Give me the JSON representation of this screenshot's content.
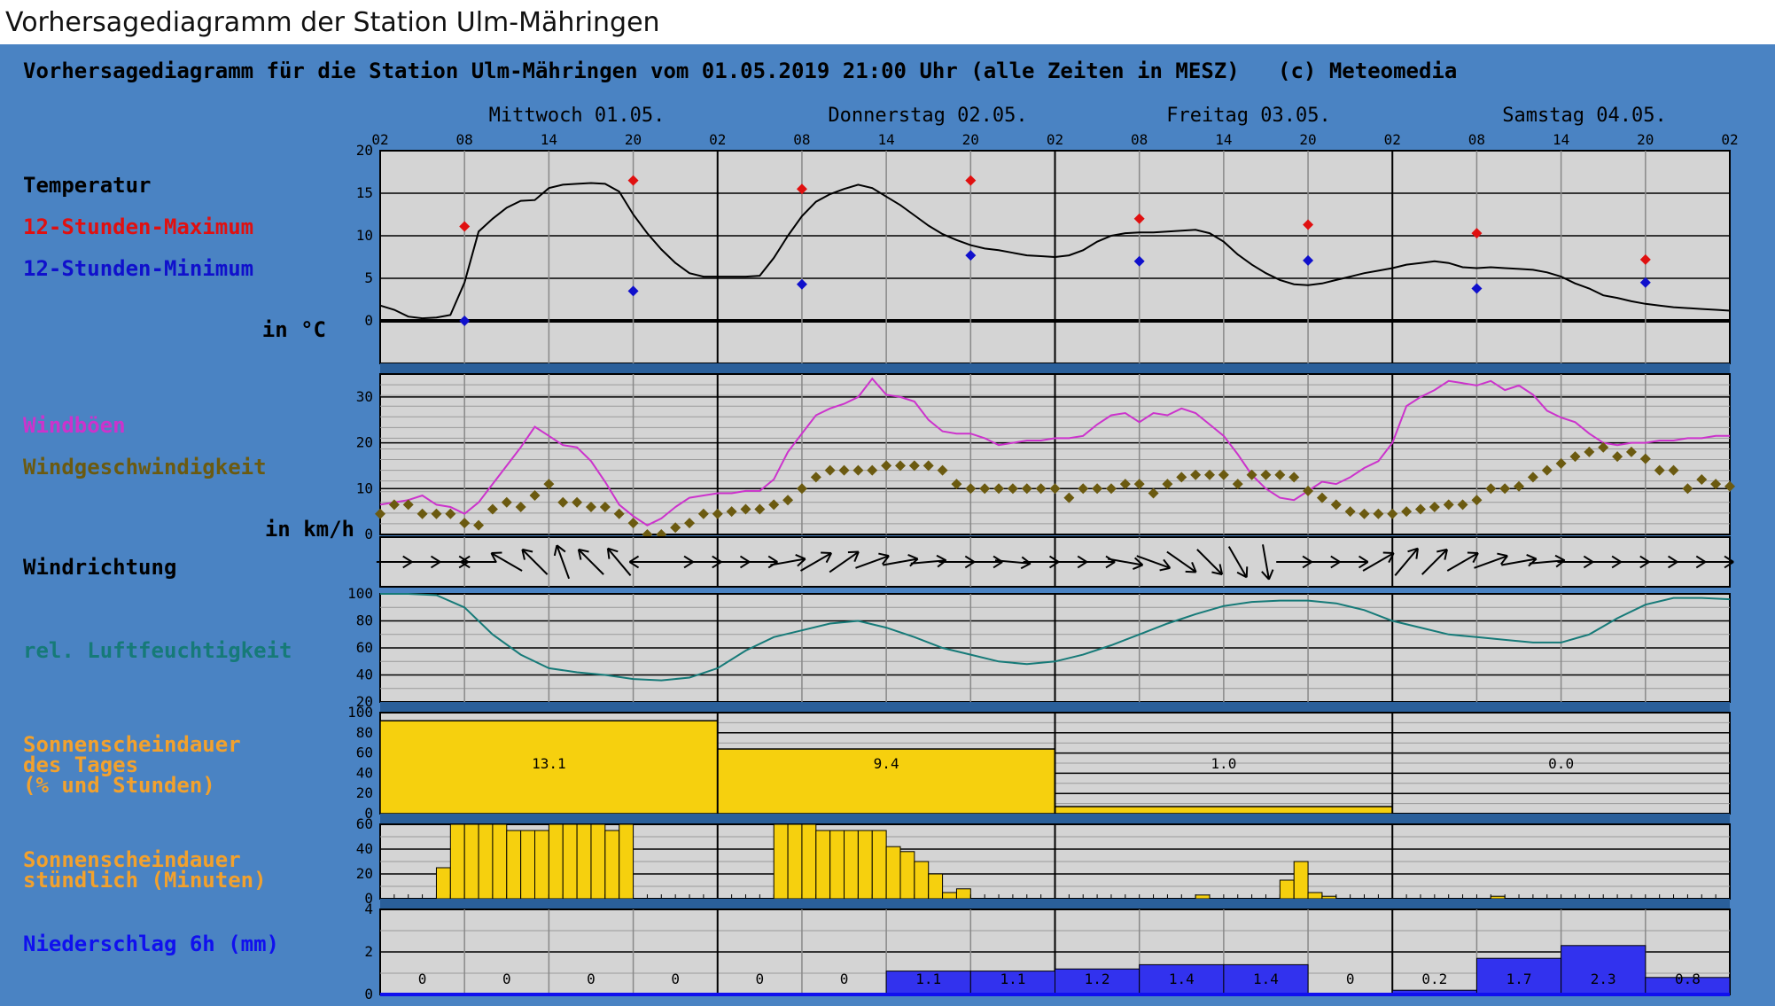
{
  "page": {
    "title": "Vorhersagediagramm der Station Ulm-Mähringen"
  },
  "chart": {
    "header": "Vorhersagediagramm für die Station Ulm-Mähringen vom 01.05.2019 21:00 Uhr (alle Zeiten in MESZ)   (c) Meteomedia",
    "days": [
      "Mittwoch 01.05.",
      "Donnerstag 02.05.",
      "Freitag 03.05.",
      "Samstag 04.05."
    ],
    "hour_labels": [
      "02",
      "08",
      "14",
      "20",
      "02",
      "08",
      "14",
      "20",
      "02",
      "08",
      "14",
      "20",
      "02",
      "08",
      "14",
      "20",
      "02"
    ],
    "colors": {
      "background": "#4a83c3",
      "plot": "#d4d4d4",
      "temperature": "#000000",
      "maximum": "#e01010",
      "minimum": "#1010cc",
      "gust": "#cc33cc",
      "wind_speed": "#6b5a10",
      "humidity": "#167a78",
      "sunshine": "#f6d00e",
      "sunshine_label": "#f2a12d",
      "precip": "#3232ee"
    },
    "labels": {
      "temperature": "Temperatur",
      "max": "12-Stunden-Maximum",
      "min": "12-Stunden-Minimum",
      "temp_unit": "in °C",
      "gust": "Windböen",
      "wind_speed": "Windgeschwindigkeit",
      "wind_unit": "in km/h",
      "wind_direction": "Windrichtung",
      "humidity": "rel. Luftfeuchtigkeit",
      "sun_daily_1": "Sonnenscheindauer",
      "sun_daily_2": "des Tages",
      "sun_daily_3": "(% und Stunden)",
      "sun_hourly_1": "Sonnenscheindauer",
      "sun_hourly_2": "stündlich (Minuten)",
      "precip": "Niederschlag 6h (mm)"
    }
  },
  "chart_data": {
    "type": "line",
    "x_unit": "hours since 01.05. 02:00 MESZ",
    "xlim": [
      0,
      96
    ],
    "temperature": {
      "ylim": [
        -5,
        20
      ],
      "yticks": [
        0,
        5,
        10,
        15,
        20
      ],
      "x": [
        0,
        1,
        2,
        3,
        4,
        5,
        6,
        7,
        8,
        9,
        10,
        11,
        12,
        13,
        14,
        15,
        16,
        17,
        18,
        19,
        20,
        21,
        22,
        23,
        24,
        25,
        26,
        27,
        28,
        29,
        30,
        31,
        32,
        33,
        34,
        35,
        36,
        37,
        38,
        39,
        40,
        41,
        42,
        43,
        44,
        45,
        46,
        47,
        48,
        49,
        50,
        51,
        52,
        53,
        54,
        55,
        56,
        57,
        58,
        59,
        60,
        61,
        62,
        63,
        64,
        65,
        66,
        67,
        68,
        69,
        70,
        71,
        72,
        73,
        74,
        75,
        76,
        77,
        78,
        79,
        80,
        81,
        82,
        83,
        84,
        85,
        86,
        87,
        88,
        89,
        90,
        91,
        92,
        93,
        94,
        95,
        96
      ],
      "values": [
        1.8,
        1.3,
        0.5,
        0.3,
        0.4,
        0.7,
        4.5,
        10.5,
        12.0,
        13.3,
        14.1,
        14.2,
        15.6,
        16.0,
        16.1,
        16.2,
        16.1,
        15.2,
        12.5,
        10.3,
        8.4,
        6.8,
        5.6,
        5.2,
        5.2,
        5.2,
        5.2,
        5.3,
        7.4,
        10.0,
        12.3,
        14.0,
        14.9,
        15.5,
        16.0,
        15.6,
        14.6,
        13.6,
        12.4,
        11.2,
        10.2,
        9.5,
        8.9,
        8.5,
        8.3,
        8.0,
        7.7,
        7.6,
        7.5,
        7.7,
        8.3,
        9.3,
        10.0,
        10.3,
        10.4,
        10.4,
        10.5,
        10.6,
        10.7,
        10.3,
        9.3,
        7.8,
        6.6,
        5.6,
        4.8,
        4.3,
        4.2,
        4.4,
        4.8,
        5.2,
        5.6,
        5.9,
        6.2,
        6.6,
        6.8,
        7.0,
        6.8,
        6.3,
        6.2,
        6.3,
        6.2,
        6.1,
        6.0,
        5.7,
        5.2,
        4.4,
        3.8,
        3.0,
        2.7,
        2.3,
        2.0,
        1.8,
        1.6,
        1.5,
        1.4,
        1.3,
        1.2
      ]
    },
    "max_12h": {
      "x": [
        6,
        18,
        30,
        42,
        54,
        66,
        78,
        90
      ],
      "values": [
        11.1,
        16.5,
        15.5,
        16.5,
        12.0,
        11.3,
        10.3,
        7.2
      ]
    },
    "min_12h": {
      "x": [
        6,
        18,
        30,
        42,
        54,
        66,
        78,
        90
      ],
      "values": [
        0.0,
        3.5,
        4.3,
        7.7,
        7.0,
        7.1,
        3.8,
        4.5
      ]
    },
    "wind": {
      "ylim": [
        0,
        35
      ],
      "yticks": [
        0,
        10,
        20,
        30
      ],
      "gust_x": [
        0,
        2,
        3,
        4,
        5,
        6,
        7,
        8,
        9,
        10,
        11,
        12,
        13,
        14,
        15,
        16,
        17,
        18,
        19,
        20,
        21,
        22,
        23,
        24,
        25,
        26,
        27,
        28,
        29,
        30,
        31,
        32,
        33,
        34,
        35,
        36,
        37,
        38,
        39,
        40,
        41,
        42,
        43,
        44,
        45,
        46,
        47,
        48,
        49,
        50,
        51,
        52,
        53,
        54,
        55,
        56,
        57,
        58,
        59,
        60,
        61,
        62,
        63,
        64,
        65,
        66,
        67,
        68,
        69,
        70,
        71,
        72,
        73,
        74,
        75,
        76,
        77,
        78,
        79,
        80,
        81,
        82,
        83,
        84,
        85,
        86,
        87,
        88,
        89,
        90,
        91,
        92,
        93,
        94,
        95,
        96
      ],
      "gust": [
        6.5,
        7.5,
        8.5,
        6.5,
        6.0,
        4.5,
        7.0,
        11.0,
        15.0,
        19.0,
        23.5,
        21.5,
        19.5,
        19.0,
        16.0,
        11.5,
        6.5,
        4.0,
        2.0,
        3.5,
        6.0,
        8.0,
        8.5,
        9.0,
        9.0,
        9.5,
        9.5,
        12.0,
        18.0,
        22.0,
        26.0,
        27.5,
        28.5,
        30.0,
        34.0,
        30.5,
        30.0,
        29.0,
        25.0,
        22.5,
        22.0,
        22.0,
        21.0,
        19.5,
        20.0,
        20.5,
        20.5,
        21.0,
        21.0,
        21.5,
        24.0,
        26.0,
        26.5,
        24.5,
        26.5,
        26.0,
        27.5,
        26.5,
        24.0,
        21.5,
        17.5,
        13.0,
        10.0,
        8.0,
        7.5,
        9.5,
        11.5,
        11.0,
        12.5,
        14.5,
        16.0,
        20.0,
        28.0,
        30.0,
        31.5,
        33.5,
        33.0,
        32.5,
        33.5,
        31.5,
        32.5,
        30.5,
        27.0,
        25.5,
        24.5,
        22.0,
        20.0,
        19.5,
        20.0,
        20.0,
        20.5,
        20.5,
        21.0,
        21.0,
        21.5,
        21.5
      ],
      "speed_x": [
        0,
        1,
        2,
        3,
        4,
        5,
        6,
        7,
        8,
        9,
        10,
        11,
        12,
        13,
        14,
        15,
        16,
        17,
        18,
        19,
        20,
        21,
        22,
        23,
        24,
        25,
        26,
        27,
        28,
        29,
        30,
        31,
        32,
        33,
        34,
        35,
        36,
        37,
        38,
        39,
        40,
        41,
        42,
        43,
        44,
        45,
        46,
        47,
        48,
        49,
        50,
        51,
        52,
        53,
        54,
        55,
        56,
        57,
        58,
        59,
        60,
        61,
        62,
        63,
        64,
        65,
        66,
        67,
        68,
        69,
        70,
        71,
        72,
        73,
        74,
        75,
        76,
        77,
        78,
        79,
        80,
        81,
        82,
        83,
        84,
        85,
        86,
        87,
        88,
        89,
        90,
        91,
        92,
        93,
        94,
        95,
        96
      ],
      "speed": [
        4.5,
        6.5,
        6.5,
        4.5,
        4.5,
        4.5,
        2.5,
        2.0,
        5.5,
        7.0,
        6.0,
        8.5,
        11.0,
        7.0,
        7.0,
        6.0,
        6.0,
        4.5,
        2.5,
        0.0,
        0.0,
        1.5,
        2.5,
        4.5,
        4.5,
        5.0,
        5.5,
        5.5,
        6.5,
        7.5,
        10.0,
        12.5,
        14.0,
        14.0,
        14.0,
        14.0,
        15.0,
        15.0,
        15.0,
        15.0,
        14.0,
        11.0,
        10.0,
        10.0,
        10.0,
        10.0,
        10.0,
        10.0,
        10.0,
        8.0,
        10.0,
        10.0,
        10.0,
        11.0,
        11.0,
        9.0,
        11.0,
        12.5,
        13.0,
        13.0,
        13.0,
        11.0,
        13.0,
        13.0,
        13.0,
        12.5,
        9.5,
        8.0,
        6.5,
        5.0,
        4.5,
        4.5,
        4.5,
        5.0,
        5.5,
        6.0,
        6.5,
        6.5,
        7.5,
        10.0,
        10.0,
        10.5,
        12.5,
        14.0,
        15.5,
        17.0,
        18.0,
        19.0,
        17.0,
        18.0,
        16.5,
        14.0,
        14.0,
        10.0,
        12.0,
        11.0,
        10.5
      ]
    },
    "wind_direction": {
      "x": [
        1,
        3,
        5,
        7,
        9,
        11,
        13,
        15,
        17,
        19,
        21,
        23,
        25,
        27,
        29,
        31,
        33,
        35,
        37,
        39,
        41,
        43,
        45,
        47,
        49,
        51,
        53,
        55,
        57,
        59,
        61,
        63,
        65,
        67,
        69,
        71,
        73,
        75,
        77,
        79,
        81,
        83,
        85,
        87,
        89,
        91,
        93,
        95
      ],
      "degrees": [
        270,
        270,
        270,
        90,
        120,
        135,
        160,
        135,
        140,
        90,
        270,
        270,
        270,
        270,
        260,
        240,
        235,
        250,
        260,
        265,
        270,
        270,
        275,
        270,
        270,
        270,
        280,
        290,
        305,
        315,
        330,
        350,
        270,
        270,
        270,
        240,
        220,
        225,
        240,
        250,
        260,
        265,
        270,
        270,
        270,
        270,
        270,
        270
      ]
    },
    "humidity": {
      "ylim": [
        20,
        100
      ],
      "yticks": [
        20,
        40,
        60,
        80,
        100
      ],
      "x": [
        0,
        2,
        4,
        6,
        8,
        10,
        12,
        14,
        16,
        18,
        20,
        22,
        24,
        26,
        28,
        30,
        32,
        34,
        36,
        38,
        40,
        42,
        44,
        46,
        48,
        50,
        52,
        54,
        56,
        58,
        60,
        62,
        64,
        66,
        68,
        70,
        72,
        74,
        76,
        78,
        80,
        82,
        84,
        86,
        88,
        90,
        92,
        94,
        96
      ],
      "values": [
        100,
        100,
        99,
        90,
        70,
        55,
        45,
        42,
        40,
        37,
        36,
        38,
        45,
        58,
        68,
        73,
        78,
        80,
        75,
        68,
        60,
        55,
        50,
        48,
        50,
        55,
        62,
        70,
        78,
        85,
        91,
        94,
        95,
        95,
        93,
        88,
        80,
        75,
        70,
        68,
        66,
        64,
        64,
        70,
        82,
        92,
        97,
        97,
        96
      ]
    },
    "sunshine_daily": {
      "ylim": [
        0,
        100
      ],
      "yticks": [
        0,
        20,
        40,
        60,
        80,
        100
      ],
      "percent": [
        92,
        64,
        7,
        0
      ],
      "hours_labels": [
        "13.1",
        "9.4",
        "1.0",
        "0.0"
      ]
    },
    "sunshine_hourly": {
      "ylim": [
        0,
        60
      ],
      "yticks": [
        0,
        20,
        40,
        60
      ],
      "start_hour": 0,
      "minutes": [
        0,
        0,
        0,
        0,
        25,
        60,
        60,
        60,
        60,
        55,
        55,
        55,
        60,
        60,
        60,
        60,
        55,
        60,
        0,
        0,
        0,
        0,
        0,
        0,
        0,
        0,
        0,
        0,
        60,
        60,
        60,
        55,
        55,
        55,
        55,
        55,
        42,
        38,
        30,
        20,
        5,
        8,
        0,
        0,
        0,
        0,
        0,
        0,
        0,
        0,
        0,
        0,
        0,
        0,
        0,
        0,
        0,
        0,
        3,
        0,
        0,
        0,
        0,
        0,
        15,
        30,
        5,
        2,
        0,
        0,
        0,
        0,
        0,
        0,
        0,
        0,
        0,
        0,
        0,
        2,
        0,
        0,
        0,
        0,
        0,
        0,
        0,
        0,
        0,
        0,
        0,
        0,
        0,
        0,
        0,
        0
      ]
    },
    "precipitation_6h": {
      "ylim": [
        0,
        4
      ],
      "yticks": [
        0,
        2,
        4
      ],
      "values": [
        0,
        0,
        0,
        0,
        0,
        0,
        1.1,
        1.1,
        1.2,
        1.4,
        1.4,
        0,
        0.2,
        1.7,
        2.3,
        0.8
      ],
      "labels": [
        "0",
        "0",
        "0",
        "0",
        "0",
        "0",
        "1.1",
        "1.1",
        "1.2",
        "1.4",
        "1.4",
        "0",
        "0.2",
        "1.7",
        "2.3",
        "0.8"
      ]
    }
  }
}
